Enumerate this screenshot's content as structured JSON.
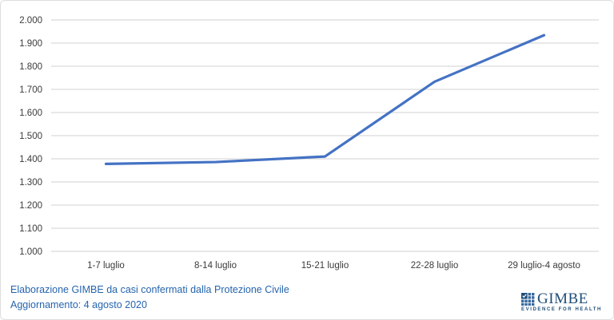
{
  "chart_data": {
    "type": "line",
    "categories": [
      "1-7 luglio",
      "8-14 luglio",
      "15-21 luglio",
      "22-28 luglio",
      "29 luglio-4 agosto"
    ],
    "values": [
      1378,
      1386,
      1410,
      1733,
      1934
    ],
    "title": "",
    "xlabel": "",
    "ylabel": "",
    "ylim": [
      1000,
      2000
    ],
    "ytick_step": 100,
    "ytick_labels": [
      "1.000",
      "1.100",
      "1.200",
      "1.300",
      "1.400",
      "1.500",
      "1.600",
      "1.700",
      "1.800",
      "1.900",
      "2.000"
    ],
    "grid": true,
    "legend": false,
    "line_color": "#4472C4",
    "gridline_color": "#D9D9D9",
    "tick_label_color": "#3B3B3B"
  },
  "footer": {
    "line1": "Elaborazione GIMBE da casi confermati dalla Protezione Civile",
    "line2": "Aggiornamento: 4 agosto 2020",
    "color": "#2564AE"
  },
  "logo": {
    "wordmark": "GIMBE",
    "tagline": "EVIDENCE FOR HEALTH",
    "color": "#1F4E79"
  }
}
